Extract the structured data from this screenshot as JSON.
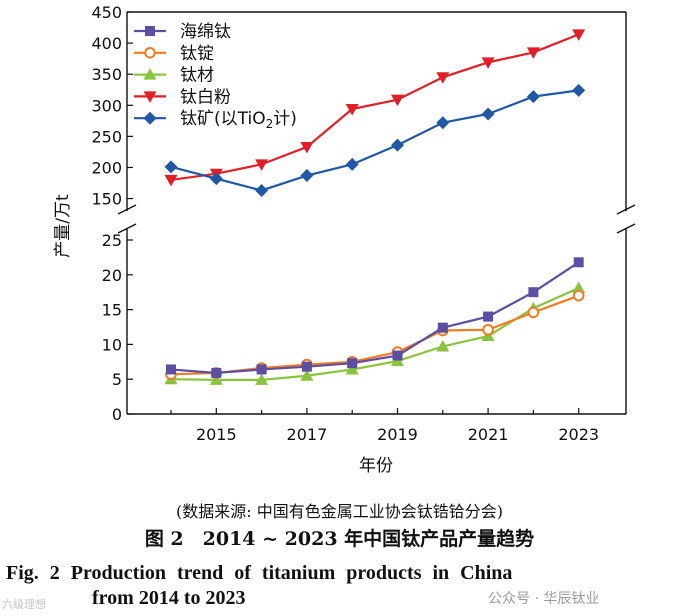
{
  "chart_data": {
    "type": "line",
    "title": "",
    "xlabel": "年份",
    "ylabel": "产量/万t",
    "x": [
      2014,
      2015,
      2016,
      2017,
      2018,
      2019,
      2020,
      2021,
      2022,
      2023
    ],
    "xticks": [
      "2015",
      "2017",
      "2019",
      "2021",
      "2023"
    ],
    "upper_axis": {
      "ylim": [
        130,
        450
      ],
      "yticks": [
        "150",
        "200",
        "250",
        "300",
        "350",
        "400",
        "450"
      ]
    },
    "lower_axis": {
      "ylim": [
        0,
        25
      ],
      "yticks": [
        "0",
        "5",
        "10",
        "15",
        "20",
        "25"
      ]
    },
    "legend_position": "top-left",
    "series": [
      {
        "name": "海绵钛",
        "color": "#5b4ea3",
        "marker": "square",
        "panel": "lower",
        "values": [
          6.4,
          5.9,
          6.4,
          6.8,
          7.3,
          8.4,
          12.4,
          14.0,
          17.5,
          21.8
        ]
      },
      {
        "name": "钛锭",
        "color": "#f07d23",
        "marker": "circle",
        "panel": "lower",
        "values": [
          5.7,
          5.9,
          6.6,
          7.1,
          7.5,
          8.9,
          12.0,
          12.1,
          14.6,
          17.0
        ]
      },
      {
        "name": "钛材",
        "color": "#8ac43f",
        "marker": "triangle-up",
        "panel": "lower",
        "values": [
          5.0,
          4.9,
          4.9,
          5.5,
          6.4,
          7.6,
          9.7,
          11.2,
          15.2,
          18.1
        ]
      },
      {
        "name": "钛白粉",
        "color": "#e21f26",
        "marker": "triangle-down",
        "panel": "upper",
        "values": [
          180,
          190,
          205,
          233,
          294,
          309,
          345,
          369,
          385,
          414
        ]
      },
      {
        "name": "钛矿",
        "legend_suffix": "(以TiO",
        "legend_sub": "2",
        "legend_end": "计)",
        "color": "#2057a6",
        "marker": "diamond",
        "panel": "upper",
        "values": [
          201,
          182,
          163,
          187,
          205,
          236,
          272,
          286,
          314,
          324
        ]
      }
    ]
  },
  "caption": {
    "source": "(数据来源: 中国有色金属工业协会钛锆铪分会)",
    "title_cn": "图 2　2014 ~ 2023 年中国钛产品产量趋势",
    "title_en_line1": "Fig. 2   Production trend of titanium products in China",
    "title_en_line2": "from 2014 to 2023"
  },
  "watermark": {
    "text": "公众号 · 华辰钛业",
    "left_mark": "六级理想"
  }
}
